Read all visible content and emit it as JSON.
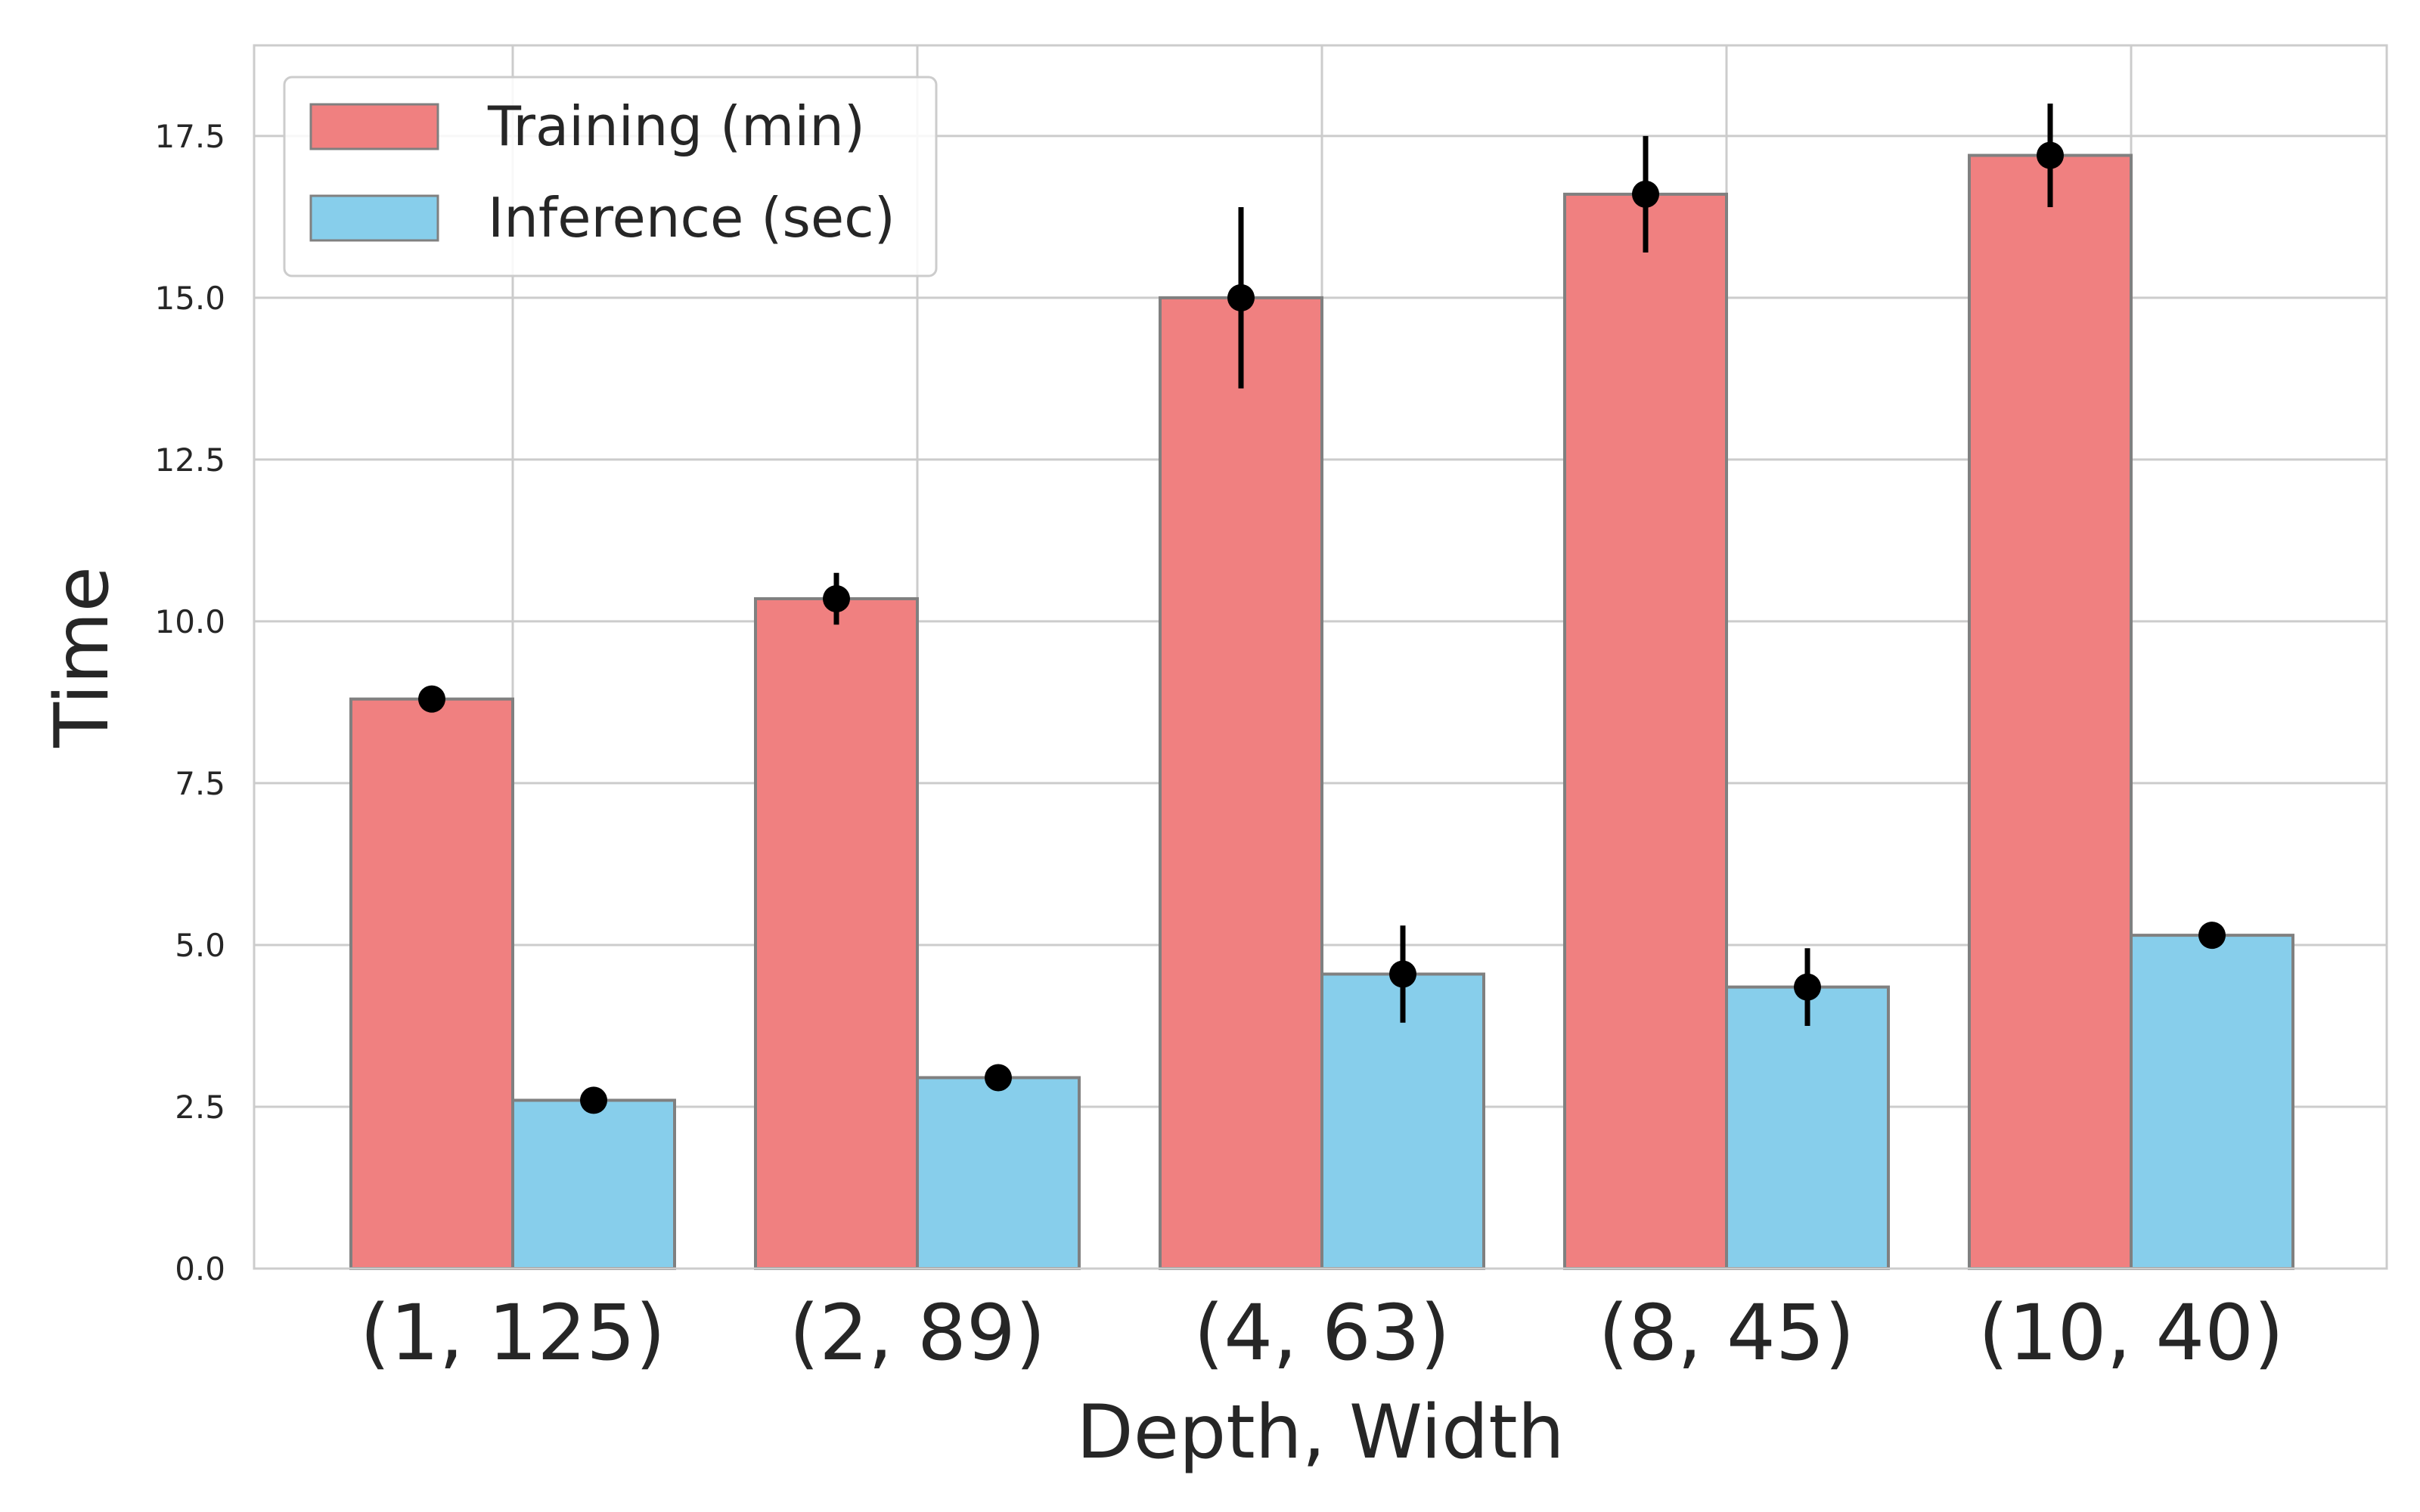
{
  "chart_data": {
    "type": "bar",
    "title": "",
    "xlabel": "Depth, Width",
    "ylabel": "Time",
    "ylim": [
      0,
      18.9
    ],
    "yticks": [
      0.0,
      2.5,
      5.0,
      7.5,
      10.0,
      12.5,
      15.0,
      17.5
    ],
    "ytick_labels": [
      "0.0",
      "2.5",
      "5.0",
      "7.5",
      "10.0",
      "12.5",
      "15.0",
      "17.5"
    ],
    "categories": [
      "(1, 125)",
      "(2, 89)",
      "(4, 63)",
      "(8, 45)",
      "(10, 40)"
    ],
    "grid": true,
    "legend_position": "top-left",
    "series": [
      {
        "name": "Training (min)",
        "color": "#f08080",
        "values": [
          8.8,
          10.35,
          15.0,
          16.6,
          17.2
        ],
        "errors": [
          0.0,
          0.4,
          1.4,
          0.9,
          0.8
        ]
      },
      {
        "name": "Inference (sec)",
        "color": "#87ceeb",
        "values": [
          2.6,
          2.95,
          4.55,
          4.35,
          5.15
        ],
        "errors": [
          0.0,
          0.0,
          0.75,
          0.6,
          0.0
        ]
      }
    ],
    "style": {
      "grid_color": "#cccccc",
      "bar_edge_color": "#808080",
      "marker_color": "#000000",
      "background": "#ffffff"
    }
  }
}
